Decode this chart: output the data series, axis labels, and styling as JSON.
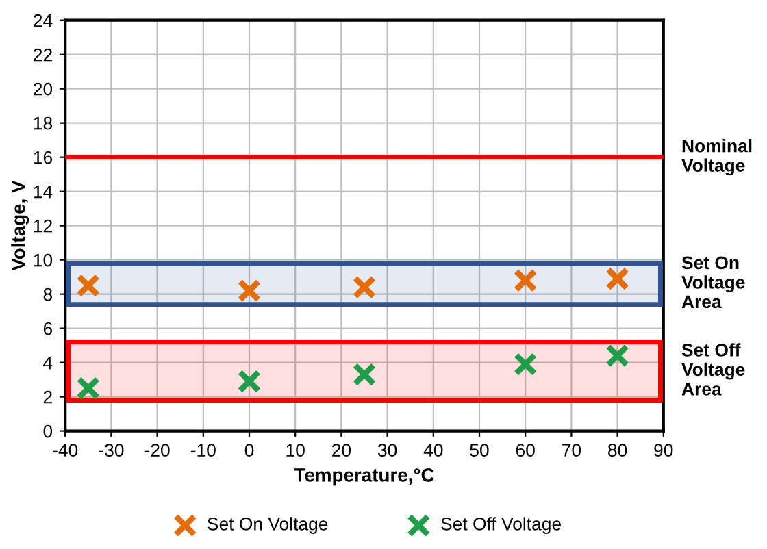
{
  "chart_data": {
    "type": "scatter",
    "xlabel": "Temperature,°C",
    "ylabel": "Voltage, V",
    "x": [
      -35,
      0,
      25,
      60,
      80
    ],
    "series": [
      {
        "name": "Set On Voltage",
        "color": "#e46c0a",
        "values": [
          8.5,
          8.2,
          8.4,
          8.8,
          8.9
        ]
      },
      {
        "name": "Set Off Voltage",
        "color": "#1f9e4a",
        "values": [
          2.5,
          2.9,
          3.3,
          3.9,
          4.4
        ]
      }
    ],
    "xlim": [
      -40,
      90
    ],
    "xticks": [
      -40,
      -30,
      -20,
      -10,
      0,
      10,
      20,
      30,
      40,
      50,
      60,
      70,
      80,
      90
    ],
    "ylim": [
      0,
      24
    ],
    "yticks": [
      0,
      2,
      4,
      6,
      8,
      10,
      12,
      14,
      16,
      18,
      20,
      22,
      24
    ],
    "ref_lines": [
      {
        "axis": "y",
        "value": 16,
        "label": "Nominal Voltage",
        "color": "#ff0000"
      }
    ],
    "bands": [
      {
        "axis": "y",
        "from": 7.4,
        "to": 9.8,
        "label": "Set On Voltage Area",
        "color": "#2f5597"
      },
      {
        "axis": "y",
        "from": 1.8,
        "to": 5.2,
        "label": "Set Off Voltage Area",
        "color": "#ff0000"
      }
    ],
    "grid": true,
    "legend": "bottom",
    "marker": "cross"
  }
}
